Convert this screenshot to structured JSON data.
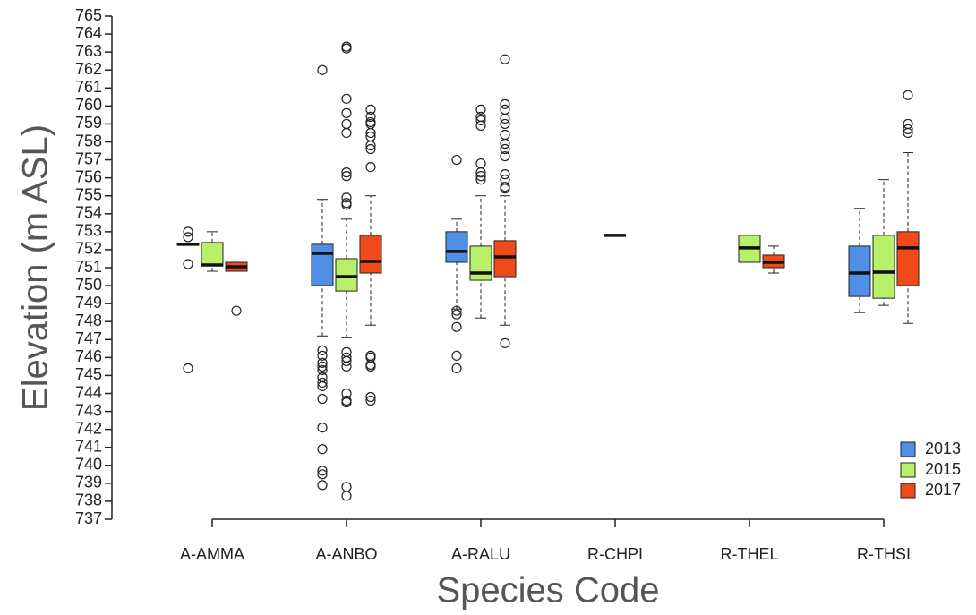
{
  "chart_data": {
    "type": "boxplot",
    "ylabel": "Elevation (m ASL)",
    "xlabel": "Species Code",
    "categories": [
      "A-AMMA",
      "A-ANBO",
      "A-RALU",
      "R-CHPI",
      "R-THEL",
      "R-THSI"
    ],
    "ylim": [
      737,
      765
    ],
    "yticks": [
      737,
      738,
      739,
      740,
      741,
      742,
      743,
      744,
      745,
      746,
      747,
      748,
      749,
      750,
      751,
      752,
      753,
      754,
      755,
      756,
      757,
      758,
      759,
      760,
      761,
      762,
      763,
      764,
      765
    ],
    "legend": "bottom-right",
    "series": [
      {
        "name": "2013",
        "color": "#4f8fe6",
        "boxes": [
          {
            "low": 752.25,
            "q1": 752.25,
            "median": 752.3,
            "q3": 752.35,
            "high": 752.35,
            "outliers": [
              753.0,
              752.7,
              751.2,
              745.4
            ]
          },
          {
            "low": 747.2,
            "q1": 750.0,
            "median": 751.8,
            "q3": 752.3,
            "high": 754.8,
            "outliers": [
              762.0,
              746.4,
              746.1,
              745.7,
              745.5,
              745.3,
              744.9,
              744.6,
              744.4,
              743.7,
              742.1,
              740.9,
              739.7,
              739.5,
              738.9
            ]
          },
          {
            "low": 748.7,
            "q1": 751.3,
            "median": 751.9,
            "q3": 753.0,
            "high": 753.7,
            "outliers": [
              757.0,
              748.6,
              748.4,
              747.7,
              746.1,
              745.4
            ]
          },
          null,
          null,
          {
            "low": 748.5,
            "q1": 749.4,
            "median": 750.7,
            "q3": 752.2,
            "high": 754.3,
            "outliers": []
          }
        ]
      },
      {
        "name": "2015",
        "color": "#b8f06a",
        "boxes": [
          {
            "low": 750.8,
            "q1": 751.1,
            "median": 751.15,
            "q3": 752.4,
            "high": 753.0,
            "outliers": []
          },
          {
            "low": 747.1,
            "q1": 749.7,
            "median": 750.5,
            "q3": 751.5,
            "high": 753.7,
            "outliers": [
              763.2,
              763.3,
              760.4,
              759.6,
              759.0,
              758.5,
              756.3,
              756.1,
              754.9,
              754.6,
              754.5,
              746.3,
              746.0,
              745.8,
              745.5,
              744.0,
              743.6,
              743.5,
              738.8,
              738.3
            ]
          },
          {
            "low": 748.2,
            "q1": 750.3,
            "median": 750.7,
            "q3": 752.2,
            "high": 755.0,
            "outliers": [
              759.8,
              759.4,
              759.2,
              758.9,
              756.8,
              756.3,
              756.1,
              755.9
            ]
          },
          {
            "low": 752.8,
            "q1": 752.8,
            "median": 752.8,
            "q3": 752.8,
            "high": 752.8,
            "outliers": []
          },
          {
            "low": 751.3,
            "q1": 751.3,
            "median": 752.1,
            "q3": 752.8,
            "high": 752.8,
            "outliers": []
          },
          {
            "low": 748.9,
            "q1": 749.3,
            "median": 750.75,
            "q3": 752.8,
            "high": 755.9,
            "outliers": []
          }
        ]
      },
      {
        "name": "2017",
        "color": "#f04a1a",
        "boxes": [
          {
            "low": 750.8,
            "q1": 750.8,
            "median": 751.05,
            "q3": 751.3,
            "high": 751.3,
            "outliers": [
              748.6
            ]
          },
          {
            "low": 747.8,
            "q1": 750.7,
            "median": 751.35,
            "q3": 752.8,
            "high": 755.0,
            "outliers": [
              759.8,
              759.4,
              759.1,
              759.0,
              758.5,
              758.3,
              757.8,
              757.6,
              756.6,
              746.1,
              746.0,
              745.6,
              745.5,
              743.8,
              743.6
            ]
          },
          {
            "low": 747.8,
            "q1": 750.5,
            "median": 751.6,
            "q3": 752.5,
            "high": 755.0,
            "outliers": [
              762.6,
              760.1,
              759.8,
              759.3,
              759.0,
              758.4,
              757.9,
              757.6,
              757.2,
              756.2,
              755.9,
              755.5,
              755.4,
              746.8
            ]
          },
          null,
          {
            "low": 750.7,
            "q1": 751.0,
            "median": 751.3,
            "q3": 751.7,
            "high": 752.2,
            "outliers": []
          },
          {
            "low": 747.9,
            "q1": 750.0,
            "median": 752.1,
            "q3": 753.0,
            "high": 757.4,
            "outliers": [
              760.6,
              759.0,
              758.7,
              758.5
            ]
          }
        ]
      }
    ]
  }
}
